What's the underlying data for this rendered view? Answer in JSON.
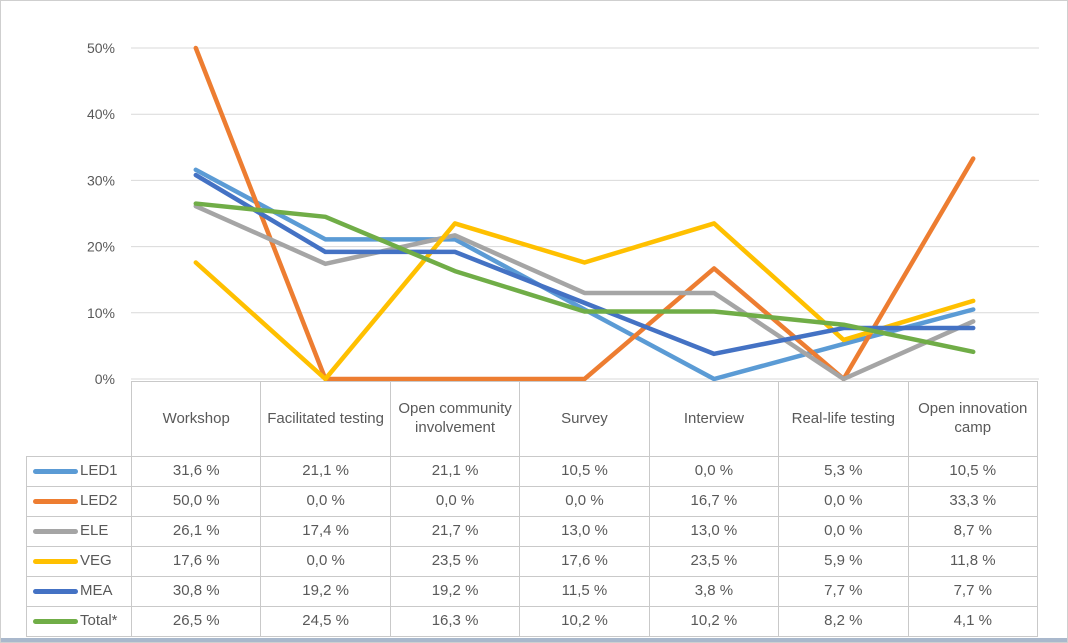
{
  "chart_data": {
    "type": "line",
    "title": "",
    "xlabel": "",
    "ylabel": "",
    "categories": [
      "Workshop",
      "Facilitated testing",
      "Open community involvement",
      "Survey",
      "Interview",
      "Real-life testing",
      "Open innovation camp"
    ],
    "series": [
      {
        "name": "LED1",
        "color": "#5B9BD5",
        "values": [
          31.6,
          21.1,
          21.1,
          10.5,
          0.0,
          5.3,
          10.5
        ]
      },
      {
        "name": "LED2",
        "color": "#ED7D31",
        "values": [
          50.0,
          0.0,
          0.0,
          0.0,
          16.7,
          0.0,
          33.3
        ]
      },
      {
        "name": "ELE",
        "color": "#A5A5A5",
        "values": [
          26.1,
          17.4,
          21.7,
          13.0,
          13.0,
          0.0,
          8.7
        ]
      },
      {
        "name": "VEG",
        "color": "#FFC000",
        "values": [
          17.6,
          0.0,
          23.5,
          17.6,
          23.5,
          5.9,
          11.8
        ]
      },
      {
        "name": "MEA",
        "color": "#4472C4",
        "values": [
          30.8,
          19.2,
          19.2,
          11.5,
          3.8,
          7.7,
          7.7
        ]
      },
      {
        "name": "Total*",
        "color": "#70AD47",
        "values": [
          26.5,
          24.5,
          16.3,
          10.2,
          10.2,
          8.2,
          4.1
        ]
      }
    ],
    "y_axis": {
      "ticks": [
        {
          "label": "50%",
          "value": 50
        },
        {
          "label": "40%",
          "value": 40
        },
        {
          "label": "30%",
          "value": 30
        },
        {
          "label": "20%",
          "value": 20
        },
        {
          "label": "10%",
          "value": 10
        },
        {
          "label": "0%",
          "value": 0
        }
      ],
      "range": [
        0,
        50
      ]
    },
    "grid": true,
    "legend_position": "table-row-headers"
  },
  "table": {
    "columns": [
      "Workshop",
      "Facilitated testing",
      "Open community involvement",
      "Survey",
      "Interview",
      "Real-life testing",
      "Open innovation camp"
    ],
    "rows": [
      {
        "label": "LED1",
        "cells": [
          "31,6 %",
          "21,1 %",
          "21,1 %",
          "10,5 %",
          "0,0 %",
          "5,3 %",
          "10,5 %"
        ]
      },
      {
        "label": "LED2",
        "cells": [
          "50,0 %",
          "0,0 %",
          "0,0 %",
          "0,0 %",
          "16,7 %",
          "0,0 %",
          "33,3 %"
        ]
      },
      {
        "label": "ELE",
        "cells": [
          "26,1 %",
          "17,4 %",
          "21,7 %",
          "13,0 %",
          "13,0 %",
          "0,0 %",
          "8,7 %"
        ]
      },
      {
        "label": "VEG",
        "cells": [
          "17,6 %",
          "0,0 %",
          "23,5 %",
          "17,6 %",
          "23,5 %",
          "5,9 %",
          "11,8 %"
        ]
      },
      {
        "label": "MEA",
        "cells": [
          "30,8 %",
          "19,2 %",
          "19,2 %",
          "11,5 %",
          "3,8 %",
          "7,7 %",
          "7,7 %"
        ]
      },
      {
        "label": "Total*",
        "cells": [
          "26,5 %",
          "24,5 %",
          "16,3 %",
          "10,2 %",
          "10,2 %",
          "8,2 %",
          "4,1 %"
        ]
      }
    ]
  },
  "colors": {
    "grid_line": "#D9D9D9",
    "axis_text": "#595959",
    "table_border": "#C9C9C9",
    "table_text": "#595959",
    "frame_border": "#CFCFCF",
    "bottom_band": "#A9B8CC",
    "background": "#FFFFFF"
  }
}
